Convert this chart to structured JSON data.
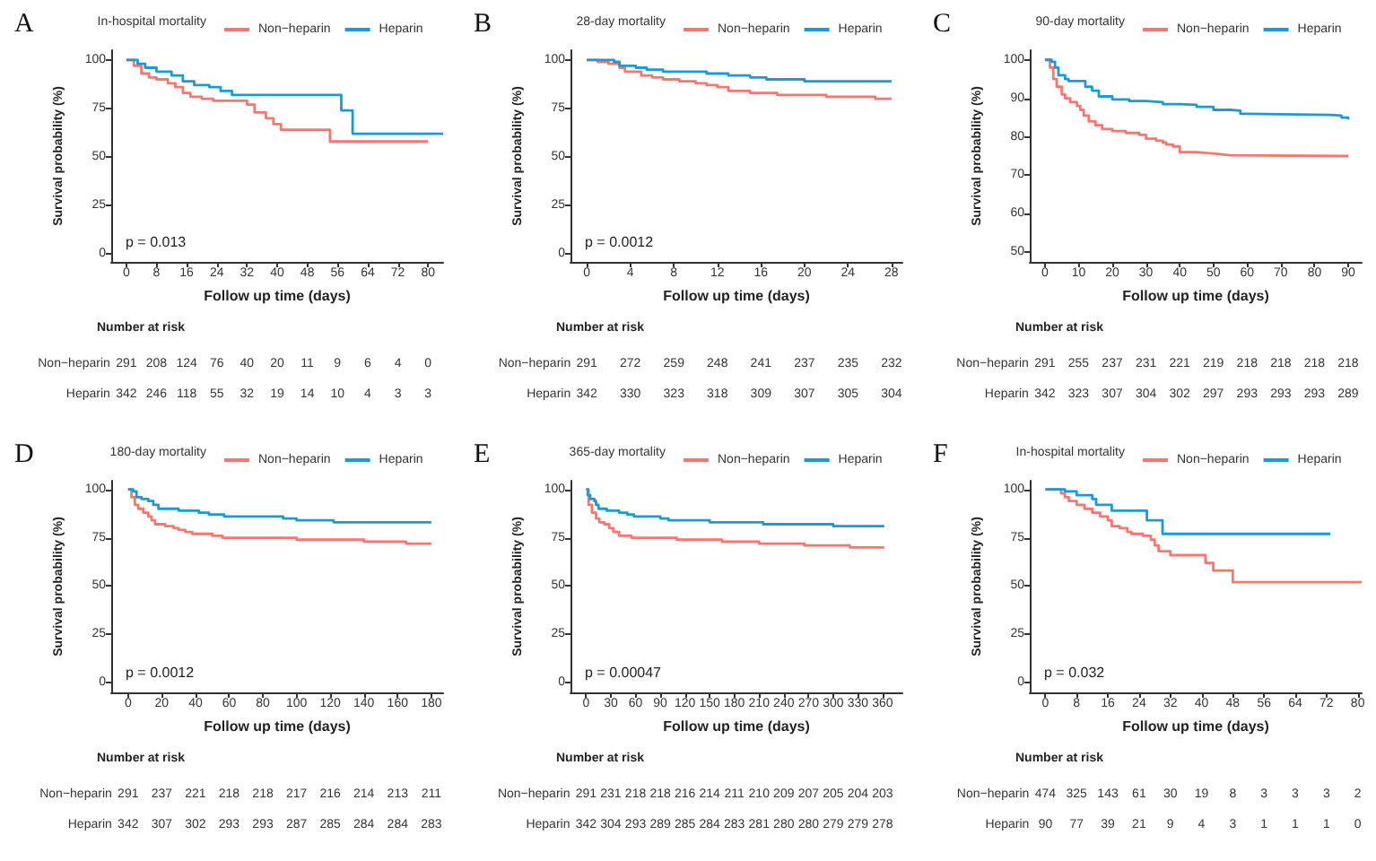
{
  "chart_data": [
    {
      "type": "step",
      "title": "A",
      "legend_title": "In-hospital mortality",
      "legend": "top",
      "xlabel": "Follow up time (days)",
      "ylabel": "Survival probability (%)",
      "xlim": [
        -4,
        84
      ],
      "xticks": [
        0,
        8,
        16,
        24,
        32,
        40,
        48,
        56,
        64,
        72,
        80
      ],
      "ylim": [
        -4,
        105
      ],
      "yticks": [
        0,
        25,
        50,
        75,
        100
      ],
      "annotations": [
        "Number at risk",
        "Non−heparin 291 208 124 76 40 20 11 9 6 4 0",
        "Heparin 342 246 118 55 32 19 14 10 4 3 3",
        "p = 0.013"
      ],
      "series": [
        {
          "name": "Non−heparin",
          "color": "#f8766d",
          "x": [
            0,
            2,
            4,
            6,
            8,
            11,
            13,
            15,
            17,
            20,
            23,
            32,
            34,
            37,
            39,
            41,
            54,
            80
          ],
          "values": [
            100,
            97,
            93,
            91,
            90,
            88,
            86,
            83,
            81,
            80,
            79,
            77,
            73,
            70,
            67,
            64,
            58,
            58
          ]
        },
        {
          "name": "Heparin",
          "color": "#1a9bd7",
          "x": [
            0,
            3,
            5,
            8,
            12,
            15,
            18,
            22,
            25,
            28,
            57,
            60,
            84
          ],
          "values": [
            100,
            98,
            96,
            94,
            92,
            89,
            87,
            86,
            84,
            82,
            74,
            62,
            62
          ]
        }
      ]
    },
    {
      "type": "step",
      "title": "B",
      "legend_title": "28-day mortality",
      "legend": "top",
      "xlabel": "Follow up time (days)",
      "ylabel": "Survival probability (%)",
      "xlim": [
        -1.5,
        29
      ],
      "xticks": [
        0,
        4,
        8,
        12,
        16,
        20,
        24,
        28
      ],
      "ylim": [
        -4,
        105
      ],
      "yticks": [
        0,
        25,
        50,
        75,
        100
      ],
      "annotations": [
        "Number at risk",
        "Non−heparin 291 272 259 248 241 237 235 232",
        "Heparin 342 330 323 318 309 307 305 304",
        "p = 0.0012"
      ],
      "series": [
        {
          "name": "Non−heparin",
          "color": "#f8766d",
          "x": [
            0,
            1,
            2,
            3,
            3.5,
            5,
            6,
            7,
            8.5,
            10,
            11,
            12,
            13,
            15,
            17.5,
            22,
            26.5,
            28
          ],
          "values": [
            100,
            99,
            98,
            96,
            94,
            92,
            91,
            90,
            89,
            88,
            87,
            86,
            84,
            83,
            82,
            81,
            80,
            80
          ]
        },
        {
          "name": "Heparin",
          "color": "#1a9bd7",
          "x": [
            0,
            2.5,
            3,
            4.5,
            5.5,
            7,
            11,
            13,
            15,
            16.5,
            20,
            28
          ],
          "values": [
            100,
            99,
            97,
            96,
            95,
            94,
            93,
            92,
            91,
            90,
            89,
            89
          ]
        }
      ]
    },
    {
      "type": "step",
      "title": "C",
      "legend_title": "90-day mortality",
      "legend": "top",
      "xlabel": "Follow up time (days)",
      "ylabel": "Survival probability (%)",
      "xlim": [
        -4.5,
        94
      ],
      "xticks": [
        0,
        10,
        20,
        30,
        40,
        50,
        60,
        70,
        80,
        90
      ],
      "ylim": [
        47.5,
        102.5
      ],
      "yticks": [
        50,
        60,
        70,
        80,
        90,
        100
      ],
      "annotations": [
        "Number at risk",
        "Non−heparin 291 255 237 231 221 219 218 218 218 218",
        "Heparin 342 323 307 304 302 297 293 293 293 289"
      ],
      "series": [
        {
          "name": "Non−heparin",
          "color": "#f8766d",
          "x": [
            0,
            1.5,
            2.5,
            3.5,
            5,
            6,
            7.5,
            9.5,
            10.5,
            11.5,
            13,
            15,
            17,
            20,
            24,
            28,
            30,
            33,
            35,
            36,
            38,
            40,
            45,
            48,
            52,
            55,
            90
          ],
          "values": [
            100,
            98,
            95,
            93,
            91,
            90,
            89,
            88,
            87,
            85.5,
            84,
            83,
            82,
            81.5,
            81,
            80.5,
            79.5,
            79,
            78.5,
            78,
            77.5,
            76,
            75.8,
            75.5,
            75.2,
            75,
            75
          ]
        },
        {
          "name": "Heparin",
          "color": "#1a9bd7",
          "x": [
            0,
            2,
            3,
            4,
            6,
            7,
            12,
            14,
            16,
            20,
            25,
            30,
            35,
            40,
            45,
            50,
            55,
            58,
            60,
            85,
            88,
            90
          ],
          "values": [
            100,
            99.5,
            98,
            96,
            95,
            94.5,
            93,
            92,
            90.5,
            89.7,
            89.3,
            89,
            88.5,
            88.3,
            87.8,
            87,
            86.8,
            86,
            85.7,
            85.5,
            85,
            84.5
          ]
        }
      ]
    },
    {
      "type": "step",
      "title": "D",
      "legend_title": "180-day mortality",
      "legend": "top",
      "xlabel": "Follow up time (days)",
      "ylabel": "Survival probability (%)",
      "xlim": [
        -10,
        187
      ],
      "xticks": [
        0,
        20,
        40,
        60,
        80,
        100,
        120,
        140,
        160,
        180
      ],
      "ylim": [
        -5,
        104.5
      ],
      "yticks": [
        0,
        25,
        50,
        75,
        100
      ],
      "annotations": [
        "Number at risk",
        "Non−heparin 291 237 221 218 218 217 216 214 213 211",
        "Heparin 342 307 302 293 293 287 285 284 284 283",
        "p = 0.0012"
      ],
      "series": [
        {
          "name": "Non−heparin",
          "color": "#f8766d",
          "x": [
            0,
            2,
            4,
            6,
            9,
            12,
            14,
            16,
            22,
            27,
            30,
            34,
            38,
            50,
            56,
            100,
            140,
            165,
            180
          ],
          "values": [
            100,
            96,
            92,
            90,
            88,
            86,
            84,
            82,
            81,
            80,
            79,
            78,
            77,
            76,
            75,
            74,
            73,
            72,
            72
          ]
        },
        {
          "name": "Heparin",
          "color": "#1a9bd7",
          "x": [
            0,
            3,
            5,
            8,
            12,
            15,
            18,
            30,
            42,
            48,
            57,
            92,
            100,
            122,
            180
          ],
          "values": [
            100,
            99,
            96,
            95,
            94,
            92,
            90,
            89,
            88,
            87,
            86,
            85,
            84,
            83,
            83
          ]
        }
      ]
    },
    {
      "type": "step",
      "title": "E",
      "legend_title": "365-day mortality",
      "legend": "top",
      "xlabel": "Follow up time (days)",
      "ylabel": "Survival probability (%)",
      "xlim": [
        -19,
        384
      ],
      "xticks": [
        0,
        30,
        60,
        90,
        120,
        150,
        180,
        210,
        240,
        270,
        300,
        330,
        360
      ],
      "ylim": [
        -5,
        104.5
      ],
      "yticks": [
        0,
        25,
        50,
        75,
        100
      ],
      "annotations": [
        "Number at risk",
        "Non−heparin 291 231 218 218 216 214 211 210 209 207 205 204 203",
        "Heparin 342 304 293 289 285 284 283 281 280 280 279 279 278",
        "p = 0.00047"
      ],
      "series": [
        {
          "name": "Non−heparin",
          "color": "#f8766d",
          "x": [
            0,
            3,
            7,
            12,
            16,
            22,
            28,
            33,
            40,
            55,
            110,
            165,
            210,
            265,
            320,
            362
          ],
          "values": [
            100,
            92,
            88,
            85,
            83,
            82,
            80,
            78,
            76,
            75,
            74,
            73,
            72,
            71,
            70,
            70
          ]
        },
        {
          "name": "Heparin",
          "color": "#1a9bd7",
          "x": [
            0,
            2,
            5,
            10,
            12,
            15,
            25,
            40,
            50,
            58,
            90,
            100,
            150,
            215,
            300,
            362
          ],
          "values": [
            100,
            97,
            95,
            94,
            92,
            90,
            89,
            88,
            87,
            86,
            85,
            84,
            83,
            82,
            81,
            81
          ]
        }
      ]
    },
    {
      "type": "step",
      "title": "F",
      "legend_title": "In-hospital mortality",
      "legend": "top",
      "xlabel": "Follow up time (days)",
      "ylabel": "Survival probability (%)",
      "xlim": [
        -4,
        81
      ],
      "xticks": [
        0,
        8,
        16,
        24,
        32,
        40,
        48,
        56,
        64,
        72,
        80
      ],
      "ylim": [
        -5,
        104.5
      ],
      "yticks": [
        0,
        25,
        50,
        75,
        100
      ],
      "annotations": [
        "Number at risk",
        "Non−heparin 474 325 143 61 30 19 8 3 3 3 2",
        "Heparin 90 77 39 21 9 4 3 1 1 1 0",
        "p = 0.032"
      ],
      "series": [
        {
          "name": "Non−heparin",
          "color": "#f8766d",
          "x": [
            0,
            4,
            5,
            6,
            8,
            10,
            12,
            14,
            16,
            17,
            19,
            21,
            22,
            25,
            27,
            28,
            29,
            32,
            41,
            43,
            48,
            81
          ],
          "values": [
            100,
            98,
            96,
            94,
            92,
            90,
            88,
            86,
            84,
            81,
            80,
            78,
            77,
            76,
            74,
            71,
            68,
            66,
            62,
            58,
            52,
            52
          ]
        },
        {
          "name": "Heparin",
          "color": "#1a9bd7",
          "x": [
            0,
            5,
            8,
            12,
            13,
            17,
            26,
            30,
            73
          ],
          "values": [
            100,
            99,
            97,
            95,
            92,
            89,
            84,
            77,
            77
          ]
        }
      ]
    }
  ]
}
